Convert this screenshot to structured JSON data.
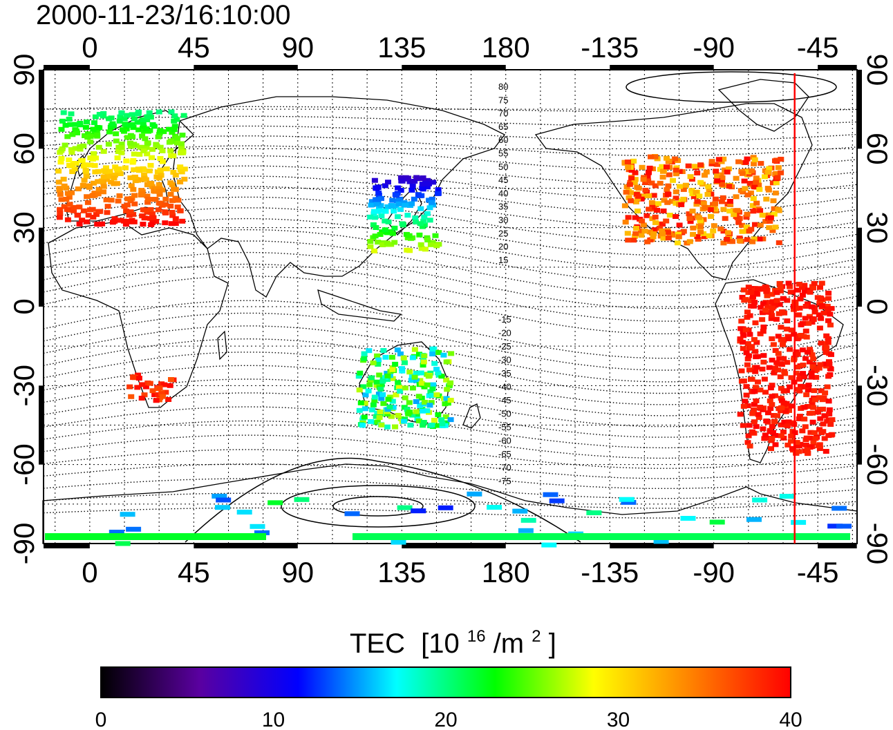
{
  "timestamp": "2000-11-23/16:10:00",
  "longitude_ticks": [
    "0",
    "45",
    "90",
    "135",
    "180",
    "-135",
    "-90",
    "-45"
  ],
  "latitude_ticks": [
    "90",
    "60",
    "30",
    "0",
    "-30",
    "-60",
    "-90"
  ],
  "contour_labels_north": [
    "80",
    "75",
    "70",
    "65",
    "60",
    "55",
    "50",
    "45",
    "40",
    "35",
    "30",
    "25",
    "20",
    "15"
  ],
  "contour_labels_south": [
    "-15",
    "-20",
    "-25",
    "-30",
    "-35",
    "-40",
    "-45",
    "-50",
    "-55",
    "-60",
    "-65",
    "-70",
    "-75"
  ],
  "colorbar": {
    "title": "TEC",
    "unit_prefix": "[10",
    "unit_exp1": "16",
    "unit_mid": "/m",
    "unit_exp2": "2",
    "unit_suffix": "]",
    "min": 0,
    "max": 40,
    "tick_labels": [
      "0",
      "10",
      "20",
      "30",
      "40"
    ],
    "colors": [
      "#000000",
      "#5a00a0",
      "#0000ff",
      "#00ffff",
      "#00ff00",
      "#ffff00",
      "#ff8000",
      "#ff0000"
    ]
  },
  "marker_line_longitude": -55,
  "marker_line_color": "#ff0000",
  "regions": [
    {
      "name": "europe",
      "lon": [
        -15,
        40
      ],
      "lat": [
        32,
        75
      ],
      "tec": [
        20,
        40
      ]
    },
    {
      "name": "north-america",
      "lon": [
        -130,
        -62
      ],
      "lat": [
        25,
        58
      ],
      "tec": [
        30,
        40
      ]
    },
    {
      "name": "japan",
      "lon": [
        120,
        150
      ],
      "lat": [
        22,
        50
      ],
      "tec": [
        8,
        28
      ]
    },
    {
      "name": "south-america",
      "lon": [
        -80,
        -40
      ],
      "lat": [
        -55,
        10
      ],
      "tec": [
        38,
        40
      ]
    },
    {
      "name": "south-africa",
      "lon": [
        15,
        35
      ],
      "lat": [
        -35,
        -25
      ],
      "tec": [
        36,
        40
      ]
    },
    {
      "name": "australia",
      "lon": [
        115,
        155
      ],
      "lat": [
        -45,
        -15
      ],
      "tec": [
        15,
        28
      ]
    },
    {
      "name": "antarctica",
      "lon": [
        -180,
        180
      ],
      "lat": [
        -90,
        -70
      ],
      "tec": [
        12,
        22
      ]
    }
  ]
}
